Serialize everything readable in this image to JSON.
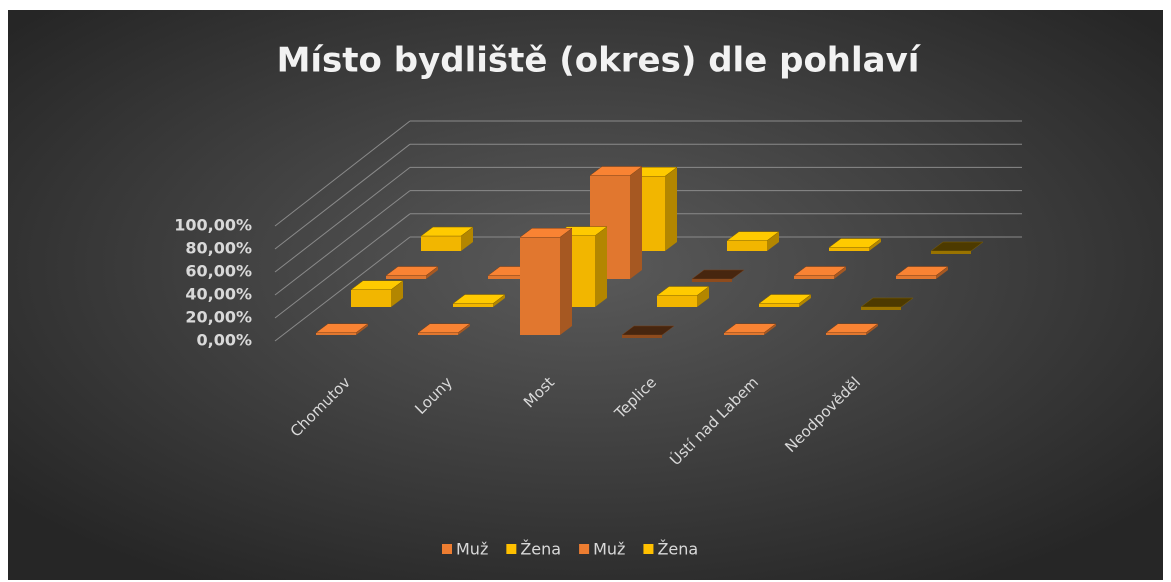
{
  "chart_data": {
    "type": "bar3d",
    "title": "Místo bydliště (okres) dle pohlaví",
    "categories": [
      "Chomutov",
      "Louny",
      "Most",
      "Teplice",
      "Ústí nad Labem",
      "Neodpověděl"
    ],
    "series": [
      {
        "name": "Muž",
        "color": "#ed7d31",
        "values": [
          2,
          2,
          85,
          0,
          2,
          2
        ]
      },
      {
        "name": "Žena",
        "color": "#ffc000",
        "values": [
          15,
          3,
          62,
          10,
          3,
          0
        ]
      },
      {
        "name": "Muž",
        "color": "#ed7d31",
        "values": [
          3,
          3,
          90,
          0,
          3,
          3
        ]
      },
      {
        "name": "Žena",
        "color": "#ffc000",
        "values": [
          13,
          0,
          65,
          9,
          3,
          0
        ]
      }
    ],
    "ylim": [
      0,
      100
    ],
    "yticks": [
      {
        "value": 0,
        "label": "0,00%"
      },
      {
        "value": 20,
        "label": "20,00%"
      },
      {
        "value": 40,
        "label": "40,00%"
      },
      {
        "value": 60,
        "label": "60,00%"
      },
      {
        "value": 80,
        "label": "80,00%"
      },
      {
        "value": 100,
        "label": "100,00%"
      }
    ],
    "grid": true,
    "legend": "bottom"
  }
}
